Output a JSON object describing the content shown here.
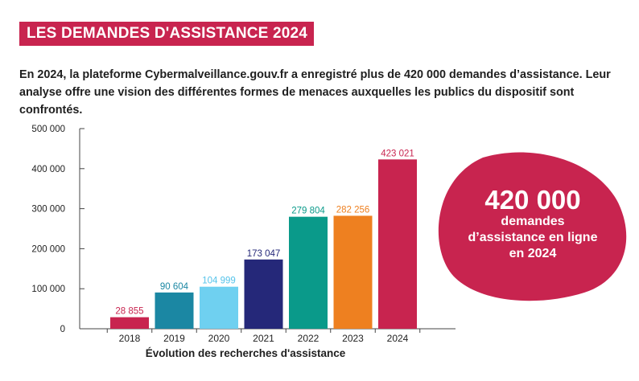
{
  "header": {
    "title": "LES DEMANDES D'ASSISTANCE 2024"
  },
  "intro": {
    "text": "En 2024, la plateforme Cybermalveillance.gouv.fr a enregistré plus de 420 000 demandes d’assistance. Leur analyse offre une vision des différentes formes de menaces auxquelles les publics du dispositif sont confrontés."
  },
  "highlight": {
    "number": "420 000",
    "line1": "demandes",
    "line2": "d’assistance en ligne",
    "line3": "en 2024",
    "color": "#c8244f"
  },
  "chart_data": {
    "type": "bar",
    "categories": [
      "2018",
      "2019",
      "2020",
      "2021",
      "2022",
      "2023",
      "2024"
    ],
    "values": [
      28855,
      90604,
      104999,
      173047,
      279804,
      282256,
      423021
    ],
    "value_labels": [
      "28 855",
      "90 604",
      "104 999",
      "173 047",
      "279 804",
      "282 256",
      "423 021"
    ],
    "colors": [
      "#c8244f",
      "#1b87a3",
      "#6fd0f0",
      "#252879",
      "#0a9a8a",
      "#ee8020",
      "#c8244f"
    ],
    "label_colors": [
      "#c8244f",
      "#1b87a3",
      "#55c3ea",
      "#252879",
      "#0a9a8a",
      "#ee8020",
      "#c8244f"
    ],
    "yticks": [
      0,
      100000,
      200000,
      300000,
      400000,
      500000
    ],
    "ytick_labels": [
      "0",
      "100 000",
      "200 000",
      "300 000",
      "400 000",
      "500 000"
    ],
    "ylim": [
      0,
      500000
    ],
    "xlabel": "Évolution des recherches d'assistance",
    "ylabel": "",
    "title": "",
    "grid": false
  }
}
